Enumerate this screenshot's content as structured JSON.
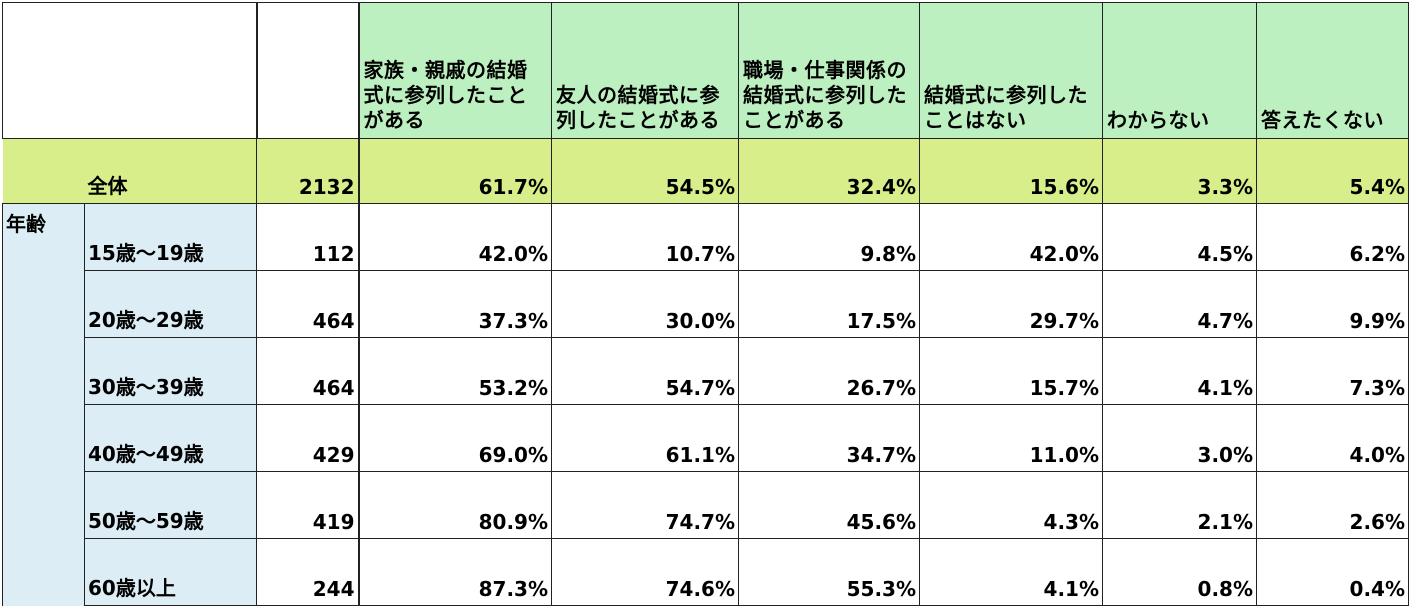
{
  "chart_data": {
    "type": "table",
    "columns": [
      "家族・親戚の結婚式に参列したことがある",
      "友人の結婚式に参列したことがある",
      "職場・仕事関係の結婚式に参列したことがある",
      "結婚式に参列したことはない",
      "わからない",
      "答えたくない"
    ],
    "total": {
      "label": "全体",
      "n": "2132",
      "values": [
        "61.7%",
        "54.5%",
        "32.4%",
        "15.6%",
        "3.3%",
        "5.4%"
      ]
    },
    "group_label": "年齢",
    "rows": [
      {
        "label": "15歳〜19歳",
        "n": "112",
        "values": [
          "42.0%",
          "10.7%",
          "9.8%",
          "42.0%",
          "4.5%",
          "6.2%"
        ]
      },
      {
        "label": "20歳〜29歳",
        "n": "464",
        "values": [
          "37.3%",
          "30.0%",
          "17.5%",
          "29.7%",
          "4.7%",
          "9.9%"
        ]
      },
      {
        "label": "30歳〜39歳",
        "n": "464",
        "values": [
          "53.2%",
          "54.7%",
          "26.7%",
          "15.7%",
          "4.1%",
          "7.3%"
        ]
      },
      {
        "label": "40歳〜49歳",
        "n": "429",
        "values": [
          "69.0%",
          "61.1%",
          "34.7%",
          "11.0%",
          "3.0%",
          "4.0%"
        ]
      },
      {
        "label": "50歳〜59歳",
        "n": "419",
        "values": [
          "80.9%",
          "74.7%",
          "45.6%",
          "4.3%",
          "2.1%",
          "2.6%"
        ]
      },
      {
        "label": "60歳以上",
        "n": "244",
        "values": [
          "87.3%",
          "74.6%",
          "55.3%",
          "4.1%",
          "0.8%",
          "0.4%"
        ]
      }
    ],
    "colors": {
      "header": "#bdf0c0",
      "total_row": "#d8ee8a",
      "age_group": "#dcedf5"
    }
  }
}
